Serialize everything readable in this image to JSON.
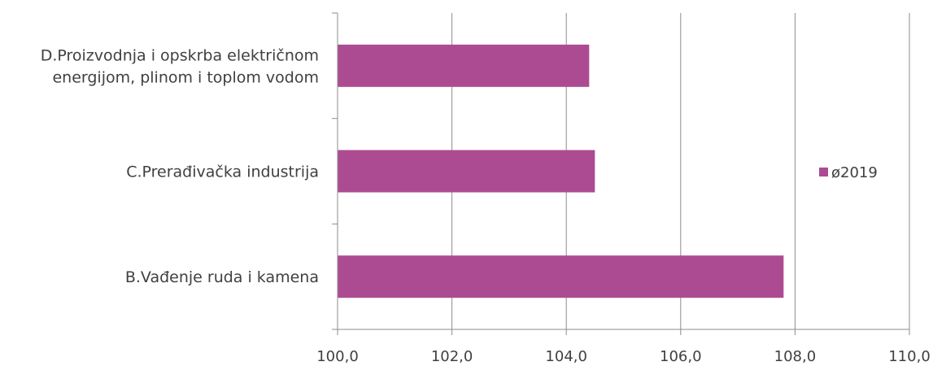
{
  "chart_data": {
    "type": "bar",
    "orientation": "horizontal",
    "categories": [
      [
        "D.Proizvodnja i opskrba električnom",
        "energijom, plinom i toplom vodom"
      ],
      [
        "C.Prerađivačka industrija"
      ],
      [
        "B.Vađenje ruda i kamena"
      ]
    ],
    "series": [
      {
        "name": "ø2019",
        "values": [
          104.4,
          104.5,
          107.8
        ],
        "color": "#ad4b92"
      }
    ],
    "xlim": [
      100,
      110
    ],
    "xticks": [
      "100,0",
      "102,0",
      "104,0",
      "106,0",
      "108,0",
      "110,0"
    ],
    "grid": true,
    "legend": "right",
    "title": "",
    "xlabel": "",
    "ylabel": ""
  }
}
